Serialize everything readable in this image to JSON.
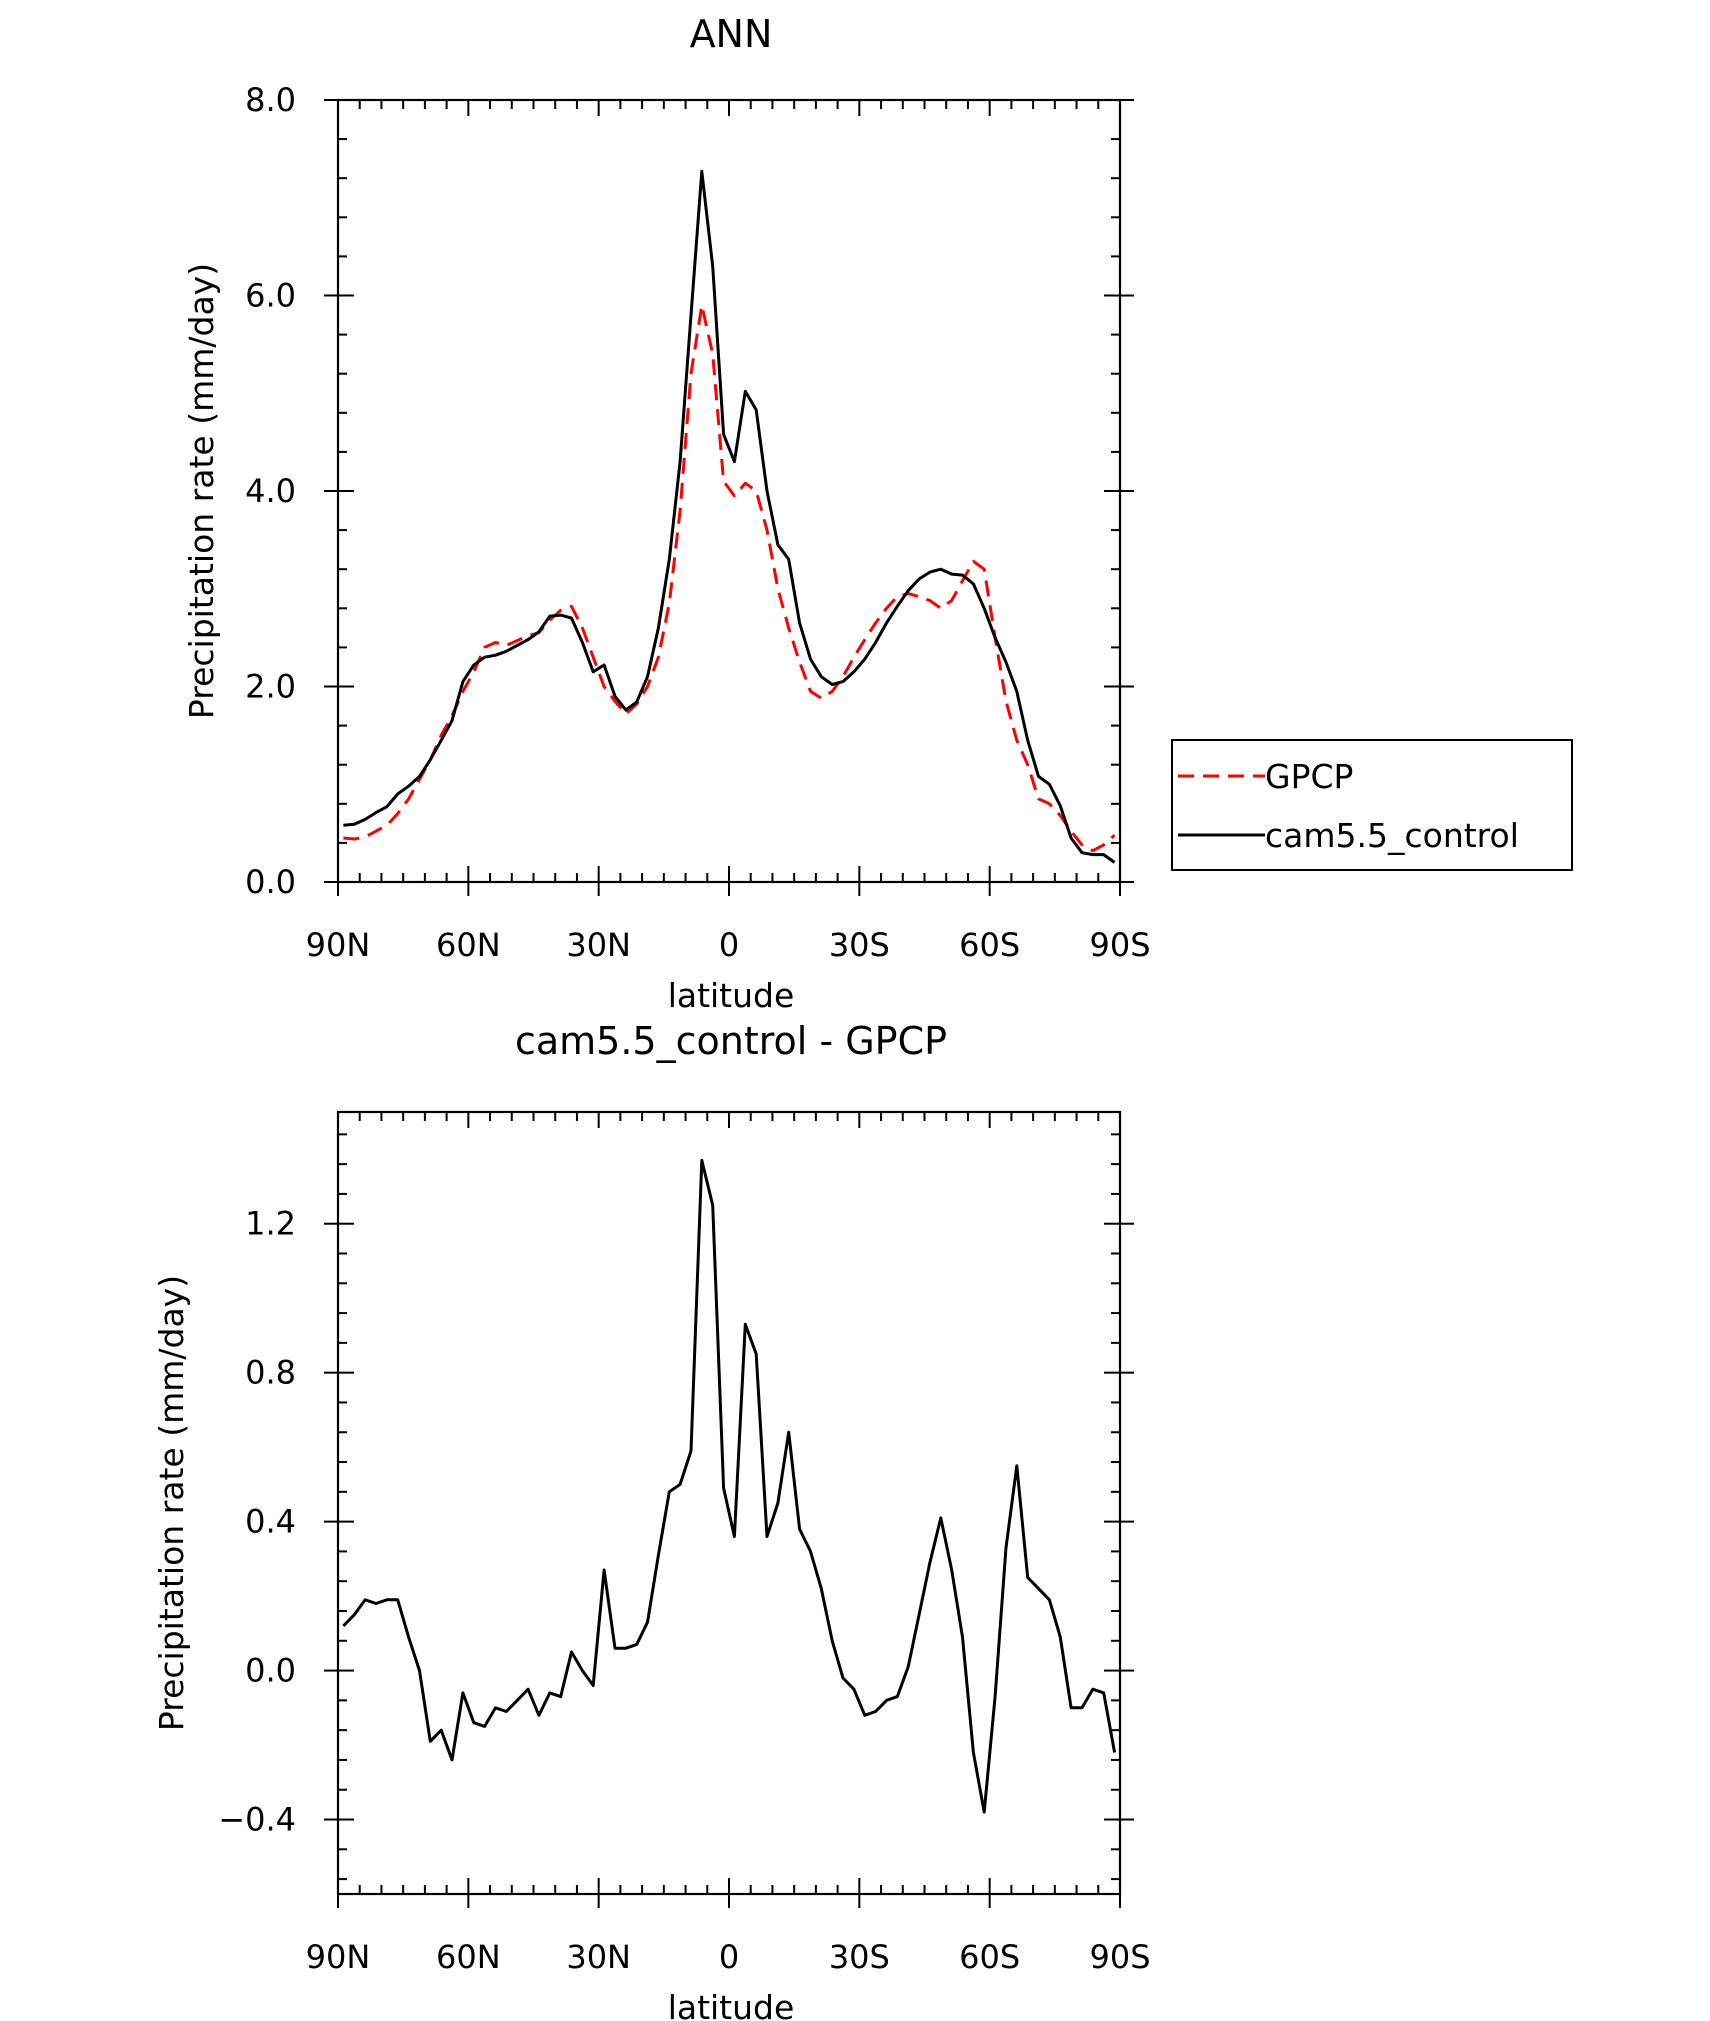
{
  "chart_data": [
    {
      "type": "line",
      "title": "ANN",
      "xlabel": "latitude",
      "ylabel": "Precipitation rate (mm/day)",
      "xlim": [
        90,
        -90
      ],
      "ylim": [
        0,
        8
      ],
      "x_ticks": [
        90,
        60,
        30,
        0,
        -30,
        -60,
        -90
      ],
      "x_tick_labels": [
        "90N",
        "60N",
        "30N",
        "0",
        "30S",
        "60S",
        "90S"
      ],
      "y_ticks": [
        0,
        2,
        4,
        6,
        8
      ],
      "y_tick_labels": [
        "0.0",
        "2.0",
        "4.0",
        "6.0",
        "8.0"
      ],
      "legend_position": "right",
      "series": [
        {
          "name": "GPCP",
          "color": "#ff0000",
          "dashed": true,
          "x": [
            88.75,
            86.25,
            83.75,
            81.25,
            78.75,
            76.25,
            73.75,
            71.25,
            68.75,
            66.25,
            63.75,
            61.25,
            58.75,
            56.25,
            53.75,
            51.25,
            48.75,
            46.25,
            43.75,
            41.25,
            38.75,
            36.25,
            33.75,
            31.25,
            28.75,
            26.25,
            23.75,
            21.25,
            18.75,
            16.25,
            13.75,
            11.25,
            8.75,
            6.25,
            3.75,
            1.25,
            -1.25,
            -3.75,
            -6.25,
            -8.75,
            -11.25,
            -13.75,
            -16.25,
            -18.75,
            -21.25,
            -23.75,
            -26.25,
            -28.75,
            -31.25,
            -33.75,
            -36.25,
            -38.75,
            -41.25,
            -43.75,
            -46.25,
            -48.75,
            -51.25,
            -53.75,
            -56.25,
            -58.75,
            -61.25,
            -63.75,
            -66.25,
            -68.75,
            -71.25,
            -73.75,
            -76.25,
            -78.75,
            -81.25,
            -83.75,
            -86.25,
            -88.75
          ],
          "y": [
            0.45,
            0.44,
            0.46,
            0.52,
            0.58,
            0.7,
            0.85,
            1.05,
            1.25,
            1.5,
            1.7,
            1.95,
            2.15,
            2.4,
            2.45,
            2.42,
            2.47,
            2.52,
            2.55,
            2.68,
            2.78,
            2.82,
            2.6,
            2.3,
            2.0,
            1.85,
            1.72,
            1.82,
            2.0,
            2.3,
            2.85,
            3.8,
            5.2,
            5.9,
            5.4,
            4.1,
            3.95,
            4.08,
            4.0,
            3.6,
            3.0,
            2.6,
            2.25,
            1.95,
            1.88,
            1.95,
            2.1,
            2.3,
            2.48,
            2.65,
            2.8,
            2.92,
            2.95,
            2.92,
            2.88,
            2.8,
            2.88,
            3.08,
            3.28,
            3.2,
            2.5,
            1.85,
            1.45,
            1.2,
            0.85,
            0.8,
            0.68,
            0.52,
            0.38,
            0.32,
            0.38,
            0.48
          ]
        },
        {
          "name": "cam5.5_control",
          "color": "#000000",
          "dashed": false,
          "x": [
            88.75,
            86.25,
            83.75,
            81.25,
            78.75,
            76.25,
            73.75,
            71.25,
            68.75,
            66.25,
            63.75,
            61.25,
            58.75,
            56.25,
            53.75,
            51.25,
            48.75,
            46.25,
            43.75,
            41.25,
            38.75,
            36.25,
            33.75,
            31.25,
            28.75,
            26.25,
            23.75,
            21.25,
            18.75,
            16.25,
            13.75,
            11.25,
            8.75,
            6.25,
            3.75,
            1.25,
            -1.25,
            -3.75,
            -6.25,
            -8.75,
            -11.25,
            -13.75,
            -16.25,
            -18.75,
            -21.25,
            -23.75,
            -26.25,
            -28.75,
            -31.25,
            -33.75,
            -36.25,
            -38.75,
            -41.25,
            -43.75,
            -46.25,
            -48.75,
            -51.25,
            -53.75,
            -56.25,
            -58.75,
            -61.25,
            -63.75,
            -66.25,
            -68.75,
            -71.25,
            -73.75,
            -76.25,
            -78.75,
            -81.25,
            -83.75,
            -86.25,
            -88.75
          ],
          "y": [
            0.58,
            0.59,
            0.64,
            0.71,
            0.77,
            0.9,
            0.98,
            1.08,
            1.25,
            1.45,
            1.65,
            2.05,
            2.22,
            2.3,
            2.32,
            2.36,
            2.42,
            2.48,
            2.56,
            2.72,
            2.73,
            2.7,
            2.45,
            2.15,
            2.22,
            1.9,
            1.76,
            1.84,
            2.1,
            2.6,
            3.3,
            4.3,
            5.8,
            7.27,
            6.3,
            4.58,
            4.3,
            5.02,
            4.83,
            4.0,
            3.45,
            3.3,
            2.65,
            2.28,
            2.1,
            2.02,
            2.05,
            2.15,
            2.28,
            2.45,
            2.65,
            2.82,
            2.98,
            3.1,
            3.17,
            3.2,
            3.15,
            3.14,
            3.05,
            2.8,
            2.5,
            2.25,
            1.95,
            1.45,
            1.08,
            1.0,
            0.78,
            0.45,
            0.3,
            0.28,
            0.28,
            0.2
          ]
        }
      ]
    },
    {
      "type": "line",
      "title": "cam5.5_control - GPCP",
      "xlabel": "latitude",
      "ylabel": "Precipitation rate (mm/day)",
      "xlim": [
        90,
        -90
      ],
      "ylim": [
        -0.6,
        1.5
      ],
      "x_ticks": [
        90,
        60,
        30,
        0,
        -30,
        -60,
        -90
      ],
      "x_tick_labels": [
        "90N",
        "60N",
        "30N",
        "0",
        "30S",
        "60S",
        "90S"
      ],
      "y_ticks": [
        -0.4,
        0,
        0.4,
        0.8,
        1.2
      ],
      "y_tick_labels": [
        "−0.4",
        "0.0",
        "0.4",
        "0.8",
        "1.2"
      ],
      "series": [
        {
          "color": "#000000",
          "dashed": false,
          "x": [
            88.75,
            86.25,
            83.75,
            81.25,
            78.75,
            76.25,
            73.75,
            71.25,
            68.75,
            66.25,
            63.75,
            61.25,
            58.75,
            56.25,
            53.75,
            51.25,
            48.75,
            46.25,
            43.75,
            41.25,
            38.75,
            36.25,
            33.75,
            31.25,
            28.75,
            26.25,
            23.75,
            21.25,
            18.75,
            16.25,
            13.75,
            11.25,
            8.75,
            6.25,
            3.75,
            1.25,
            -1.25,
            -3.75,
            -6.25,
            -8.75,
            -11.25,
            -13.75,
            -16.25,
            -18.75,
            -21.25,
            -23.75,
            -26.25,
            -28.75,
            -31.25,
            -33.75,
            -36.25,
            -38.75,
            -41.25,
            -43.75,
            -46.25,
            -48.75,
            -51.25,
            -53.75,
            -56.25,
            -58.75,
            -61.25,
            -63.75,
            -66.25,
            -68.75,
            -71.25,
            -73.75,
            -76.25,
            -78.75,
            -81.25,
            -83.75,
            -86.25,
            -88.75
          ],
          "y": [
            0.12,
            0.15,
            0.19,
            0.18,
            0.19,
            0.19,
            0.09,
            0.0,
            -0.19,
            -0.16,
            -0.24,
            -0.06,
            -0.14,
            -0.15,
            -0.1,
            -0.11,
            -0.08,
            -0.05,
            -0.12,
            -0.06,
            -0.07,
            0.05,
            0.0,
            -0.04,
            0.27,
            0.06,
            0.06,
            0.07,
            0.13,
            0.31,
            0.48,
            0.5,
            0.59,
            1.37,
            1.25,
            0.49,
            0.36,
            0.93,
            0.85,
            0.36,
            0.45,
            0.64,
            0.38,
            0.32,
            0.22,
            0.08,
            -0.02,
            -0.05,
            -0.12,
            -0.11,
            -0.08,
            -0.07,
            0.01,
            0.15,
            0.29,
            0.41,
            0.27,
            0.09,
            -0.22,
            -0.38,
            -0.07,
            0.33,
            0.55,
            0.25,
            0.22,
            0.19,
            0.09,
            -0.1,
            -0.1,
            -0.05,
            -0.06,
            -0.22
          ]
        }
      ]
    }
  ]
}
